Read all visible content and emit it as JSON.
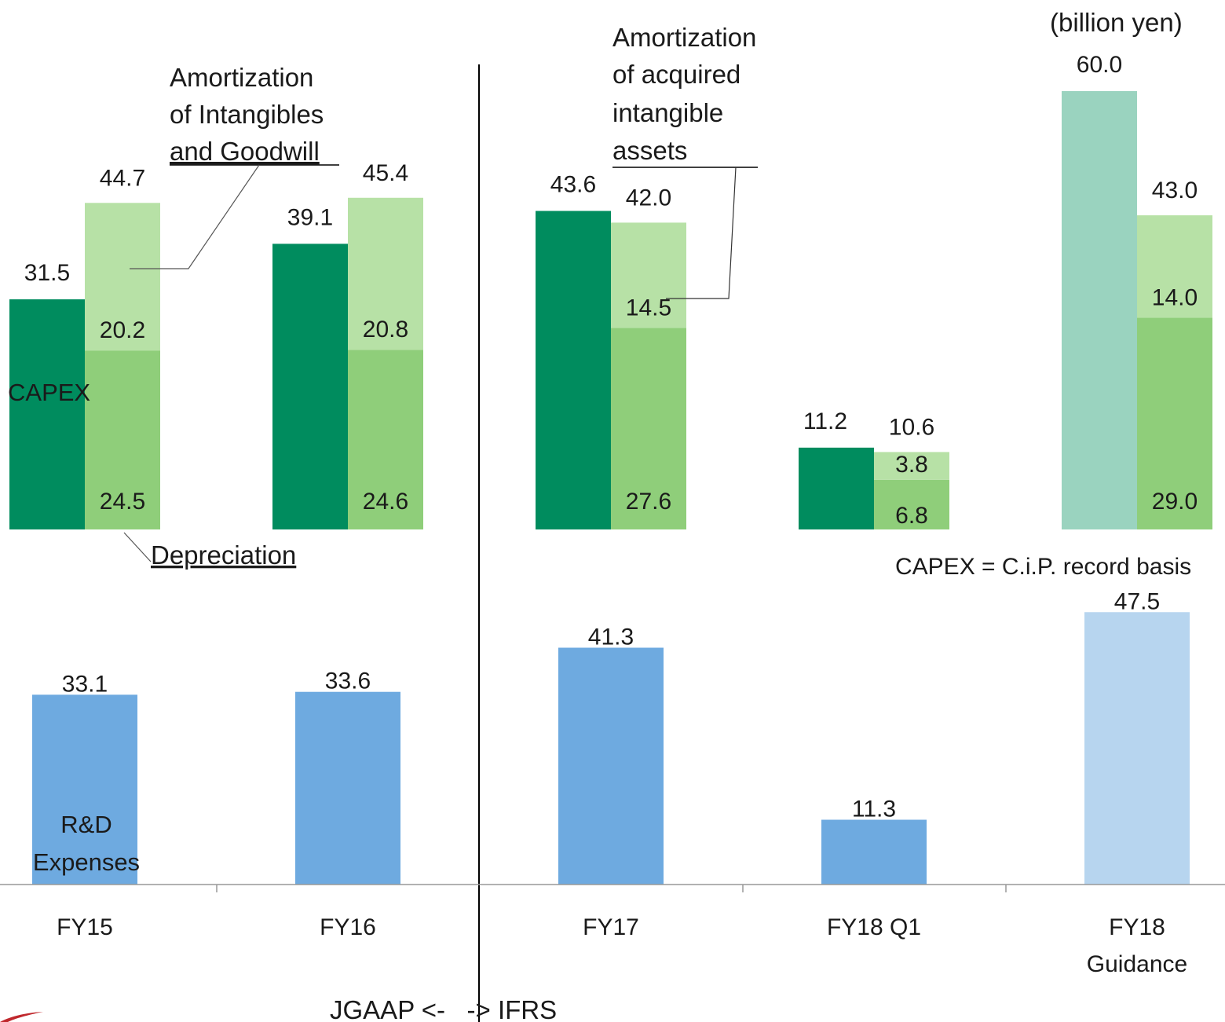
{
  "chart_data": {
    "type": "bar",
    "unit_label": "(billion yen)",
    "categories": [
      "FY15",
      "FY16",
      "FY17",
      "FY18 Q1",
      "FY18 Guidance"
    ],
    "capex": {
      "label": "CAPEX",
      "values": [
        31.5,
        39.1,
        43.6,
        11.2,
        60.0
      ],
      "labels": [
        "31.5",
        "39.1",
        "43.6",
        "11.2",
        "60.0"
      ],
      "colors": [
        "#008C5E",
        "#008C5E",
        "#008C5E",
        "#008C5E",
        "#9AD3BF"
      ]
    },
    "depreciation_amortization": {
      "totals": [
        44.7,
        45.4,
        42.0,
        10.6,
        43.0
      ],
      "total_labels": [
        "44.7",
        "45.4",
        "42.0",
        "10.6",
        "43.0"
      ],
      "depreciation": [
        24.5,
        24.6,
        27.6,
        6.8,
        29.0
      ],
      "depreciation_labels": [
        "24.5",
        "24.6",
        "27.6",
        "6.8",
        "29.0"
      ],
      "amortization": [
        20.2,
        20.8,
        14.5,
        3.8,
        14.0
      ],
      "amortization_labels": [
        "20.2",
        "20.8",
        "14.5",
        "3.8",
        "14.0"
      ],
      "depreciation_color": "#8FCE7A",
      "amortization_color": "#B7E1A6"
    },
    "rnd": {
      "label": "R&D Expenses",
      "values": [
        33.1,
        33.6,
        41.3,
        11.3,
        47.5
      ],
      "labels": [
        "33.1",
        "33.6",
        "41.3",
        "11.3",
        "47.5"
      ],
      "colors": [
        "#6EAAE0",
        "#6EAAE0",
        "#6EAAE0",
        "#6EAAE0",
        "#B7D5EF"
      ]
    },
    "annotations": {
      "amort_intangibles_goodwill": [
        "Amortization",
        "of Intangibles",
        "and Goodwill"
      ],
      "amort_acquired": [
        "Amortization",
        "of acquired",
        "intangible",
        "assets"
      ],
      "capex_label": "CAPEX",
      "depreciation_label": "Depreciation",
      "capex_basis": "CAPEX = C.i.P.  record basis",
      "rnd_label": [
        "R&D",
        "Expenses"
      ],
      "standards": "JGAAP <-   -> IFRS"
    }
  }
}
